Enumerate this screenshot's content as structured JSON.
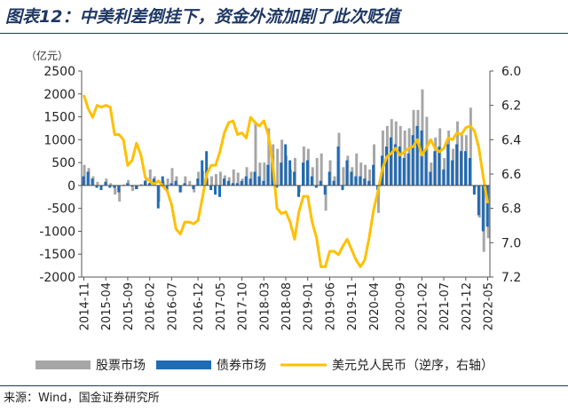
{
  "header": {
    "title": "图表12：中美利差倒挂下，资金外流加剧了此次贬值"
  },
  "footer": {
    "source": "来源：Wind，国金证券研究所"
  },
  "colors": {
    "stock": "#a6a6a6",
    "bond": "#1f6bb5",
    "fx": "#ffc000",
    "title": "#1f3864"
  },
  "chart_data": {
    "type": "bar",
    "title": "",
    "left_unit_label": "（亿元）",
    "x_tick_labels": [
      "2014-11",
      "2015-04",
      "2015-09",
      "2016-02",
      "2016-07",
      "2016-12",
      "2017-05",
      "2017-10",
      "2018-03",
      "2018-08",
      "2019-01",
      "2019-06",
      "2019-11",
      "2020-04",
      "2020-09",
      "2021-02",
      "2021-07",
      "2021-12",
      "2022-05"
    ],
    "ylim": [
      -2000,
      2500
    ],
    "y_ticks": [
      -2000,
      -1500,
      -1000,
      -500,
      0,
      500,
      1000,
      1500,
      2000,
      2500
    ],
    "y2lim": [
      6.0,
      7.2
    ],
    "y2_ticks": [
      6.0,
      6.2,
      6.4,
      6.6,
      6.8,
      7.0,
      7.2
    ],
    "y2_tick_labels": [
      "6.0",
      "6.2",
      "6.4",
      "6.6",
      "6.8",
      "7.0",
      "7.2"
    ],
    "y2_reversed": true,
    "legend_position": "bottom",
    "series": [
      {
        "name": "股票市场",
        "kind": "bar",
        "values": [
          450,
          380,
          200,
          80,
          -20,
          150,
          50,
          -200,
          -350,
          20,
          120,
          -120,
          -80,
          30,
          130,
          350,
          200,
          -350,
          100,
          150,
          380,
          200,
          -150,
          200,
          100,
          -150,
          300,
          320,
          150,
          200,
          250,
          300,
          220,
          180,
          350,
          280,
          150,
          400,
          300,
          1350,
          500,
          500,
          1250,
          900,
          800,
          1000,
          650,
          350,
          600,
          -150,
          850,
          800,
          400,
          600,
          700,
          -550,
          550,
          200,
          1150,
          400,
          650,
          400,
          700,
          500,
          450,
          350,
          900,
          -600,
          1200,
          1300,
          1450,
          1400,
          1300,
          1200,
          1250,
          1650,
          1650,
          2100,
          1500,
          500,
          1050,
          1250,
          600,
          1200,
          800,
          1400,
          1100,
          1100,
          1700,
          -50,
          -700,
          -1450,
          -1150
        ]
      },
      {
        "name": "债券市场",
        "kind": "bar",
        "values": [
          200,
          300,
          150,
          -50,
          -100,
          80,
          -50,
          -50,
          -150,
          -10,
          50,
          -20,
          -80,
          -10,
          100,
          50,
          150,
          -500,
          200,
          -100,
          50,
          100,
          -150,
          50,
          0,
          -80,
          150,
          550,
          750,
          -100,
          -200,
          -250,
          150,
          100,
          50,
          50,
          100,
          200,
          150,
          300,
          200,
          100,
          450,
          650,
          -50,
          500,
          900,
          550,
          300,
          -250,
          500,
          550,
          200,
          -50,
          100,
          -200,
          300,
          100,
          850,
          -100,
          550,
          300,
          200,
          200,
          150,
          100,
          450,
          -100,
          650,
          850,
          1050,
          900,
          850,
          600,
          700,
          1100,
          1300,
          1200,
          800,
          300,
          750,
          850,
          350,
          900,
          550,
          900,
          750,
          750,
          600,
          -200,
          -650,
          -1000,
          -900
        ]
      },
      {
        "name": "美元兑人民币（逆序，右轴）",
        "kind": "line",
        "axis": "right",
        "values": [
          6.14,
          6.22,
          6.27,
          6.2,
          6.21,
          6.2,
          6.21,
          6.37,
          6.37,
          6.4,
          6.55,
          6.52,
          6.42,
          6.49,
          6.62,
          6.64,
          6.66,
          6.64,
          6.67,
          6.7,
          6.78,
          6.92,
          6.95,
          6.88,
          6.88,
          6.89,
          6.87,
          6.74,
          6.6,
          6.55,
          6.55,
          6.47,
          6.36,
          6.3,
          6.29,
          6.37,
          6.36,
          6.39,
          6.27,
          6.3,
          6.32,
          6.29,
          6.37,
          6.53,
          6.8,
          6.83,
          6.82,
          6.88,
          6.98,
          6.82,
          6.73,
          6.73,
          6.88,
          6.97,
          7.14,
          7.14,
          7.05,
          7.05,
          7.07,
          7.02,
          6.98,
          7.04,
          7.1,
          7.14,
          7.1,
          6.97,
          6.81,
          6.7,
          6.57,
          6.5,
          6.48,
          6.45,
          6.49,
          6.47,
          6.45,
          6.44,
          6.4,
          6.49,
          6.45,
          6.4,
          6.45,
          6.47,
          6.45,
          6.39,
          6.4,
          6.36,
          6.37,
          6.33,
          6.32,
          6.35,
          6.45,
          6.62,
          6.77
        ]
      }
    ]
  }
}
